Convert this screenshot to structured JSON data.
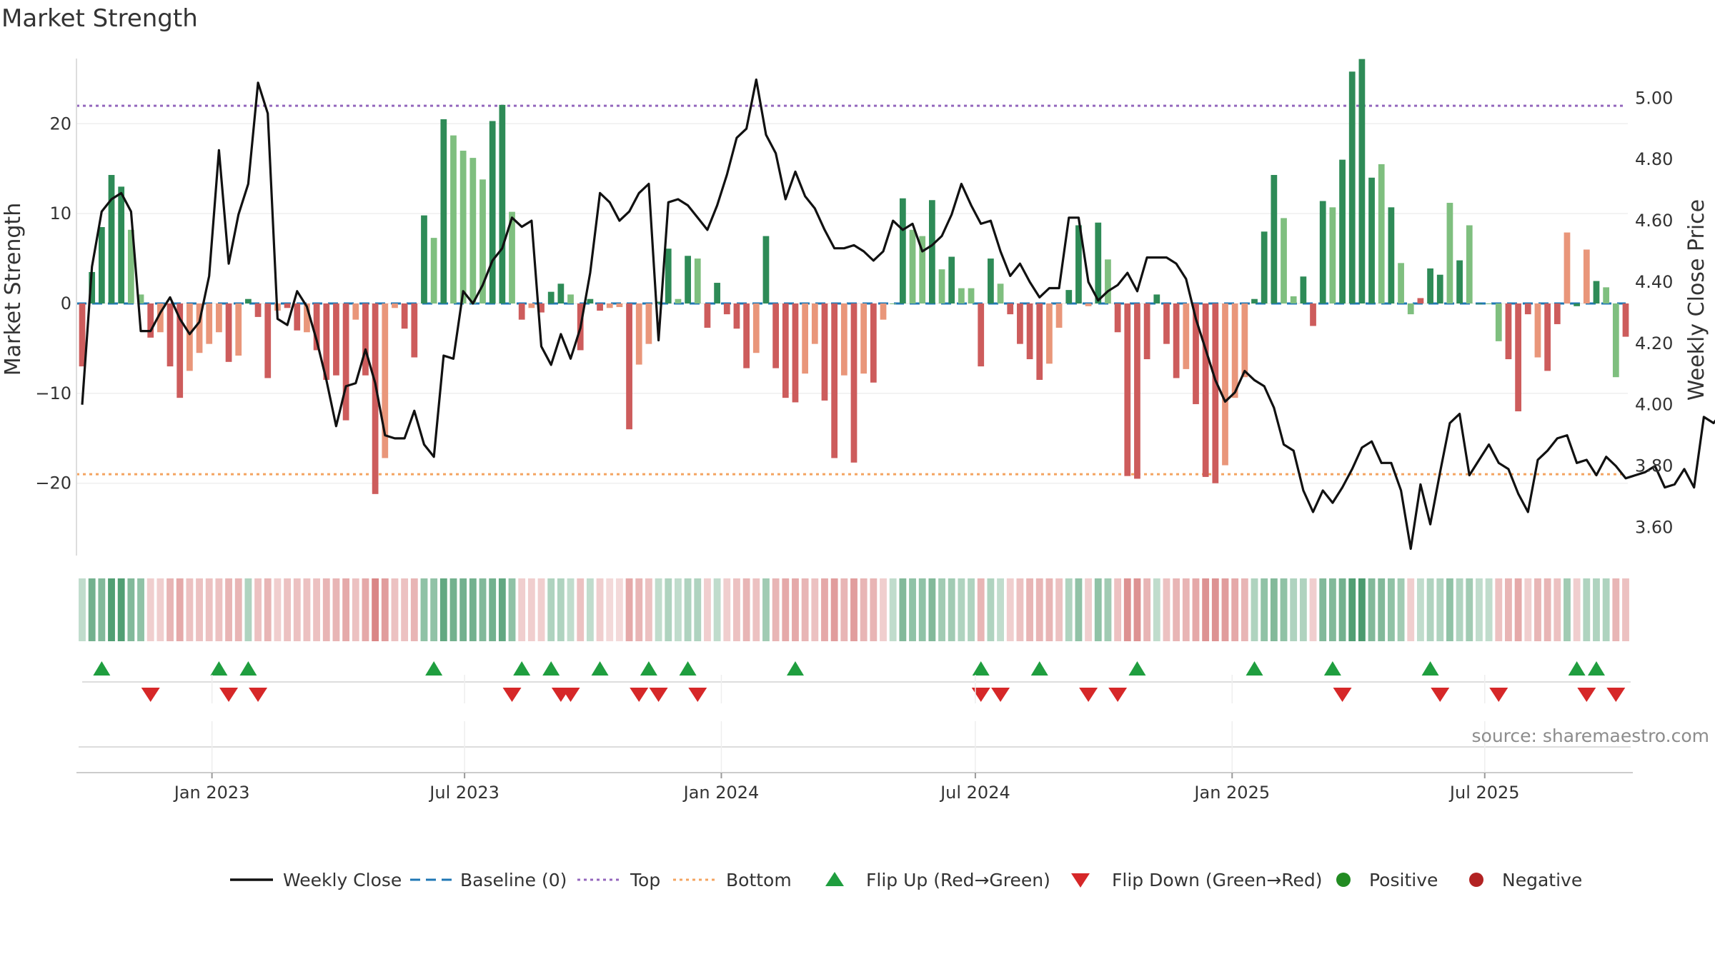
{
  "title": "Market Strength",
  "source": "source: sharemaestro.com",
  "colors": {
    "price_line": "#111111",
    "baseline": "#1f77b4",
    "top": "#9467bd",
    "bottom": "#f4a460",
    "strong_positive": "#2e8b57",
    "weak_positive": "#7fbf7f",
    "strong_negative": "#cd5c5c",
    "weak_negative": "#e9967a",
    "flip_up": "#1f9e3f",
    "flip_down": "#d62728",
    "positive_dot": "#228b22",
    "negative_dot": "#b22222"
  },
  "chart_data": {
    "type": "bar",
    "x_start": "2022-09-30",
    "x_step_days": 7,
    "left_axis": {
      "label": "Market Strength",
      "ticks": [
        20,
        10,
        0,
        -10,
        -20
      ],
      "ylim": [
        -29,
        29
      ]
    },
    "right_axis": {
      "label": "Weekly Close Price",
      "ticks": [
        "5.00",
        "4.80",
        "4.60",
        "4.40",
        "4.20",
        "4.00",
        "3.80",
        "3.60"
      ],
      "ylim": [
        3.48,
        5.18
      ]
    },
    "x_ticks": [
      {
        "date": "2023-01-01",
        "label": "Jan 2023"
      },
      {
        "date": "2023-07-01",
        "label": "Jul 2023"
      },
      {
        "date": "2024-01-01",
        "label": "Jan 2024"
      },
      {
        "date": "2024-07-01",
        "label": "Jul 2024"
      },
      {
        "date": "2025-01-01",
        "label": "Jan 2025"
      },
      {
        "date": "2025-07-01",
        "label": "Jul 2025"
      }
    ],
    "top_level": 22,
    "bottom_level": -19,
    "baseline": 0,
    "strength": [
      -7,
      3.5,
      8.5,
      14.3,
      13,
      8.2,
      1,
      -3.8,
      -3.2,
      -7,
      -10.5,
      -7.5,
      -5.5,
      -4.5,
      -3.2,
      -6.5,
      -5.8,
      0.5,
      -1.5,
      -8.3,
      -0.8,
      -0.5,
      -3,
      -3.2,
      -5.2,
      -8.5,
      -8,
      -13,
      -1.8,
      -8,
      -21.2,
      -17.2,
      -0.5,
      -2.8,
      -6,
      9.8,
      7.3,
      20.5,
      18.7,
      17,
      16.2,
      13.8,
      20.3,
      22.1,
      10.2,
      -1.8,
      -0.5,
      -1,
      1.3,
      2.2,
      1,
      -5.2,
      0.5,
      -0.8,
      -0.5,
      -0.4,
      -14,
      -6.8,
      -4.5,
      0.2,
      6.1,
      0.5,
      5.3,
      5,
      -2.7,
      2.3,
      -1.2,
      -2.8,
      -7.2,
      -5.5,
      7.5,
      -7.2,
      -10.5,
      -11,
      -7.8,
      -4.5,
      -10.8,
      -17.2,
      -8,
      -17.7,
      -7.8,
      -8.8,
      -1.8,
      0,
      11.7,
      8.2,
      7.5,
      11.5,
      3.8,
      5.2,
      1.7,
      1.7,
      -7,
      5,
      2.2,
      -1.2,
      -4.5,
      -6.2,
      -8.5,
      -6.7,
      -2.7,
      1.5,
      8.7,
      -0.3,
      9,
      4.9,
      -3.2,
      -19.2,
      -19.5,
      -6.2,
      1,
      -4.5,
      -8.3,
      -7.3,
      -11.2,
      -19.3,
      -20,
      -18,
      -10.5,
      -8.2,
      0.5,
      8,
      14.3,
      9.5,
      0.8,
      3,
      -2.5,
      11.4,
      10.7,
      16,
      25.8,
      27.2,
      14,
      15.5,
      10.7,
      4.5,
      -1.2,
      0.6,
      3.9,
      3.2,
      11.2,
      4.8,
      8.7,
      0,
      0,
      -4.2,
      -6.2,
      -12,
      -1.2,
      -6,
      -7.5,
      -2.3,
      7.9,
      -0.3,
      6,
      2.5,
      1.8,
      -8.2,
      -3.7
    ],
    "strength_style": [
      "sn",
      "sp",
      "sp",
      "sp",
      "sp",
      "wp",
      "wp",
      "sn",
      "wn",
      "sn",
      "sn",
      "wn",
      "wn",
      "wn",
      "wn",
      "sn",
      "wn",
      "sp",
      "sn",
      "sn",
      "wn",
      "sn",
      "sn",
      "wn",
      "sn",
      "sn",
      "sn",
      "sn",
      "wn",
      "sn",
      "sn",
      "wn",
      "wn",
      "sn",
      "sn",
      "sp",
      "wp",
      "sp",
      "wp",
      "wp",
      "wp",
      "wp",
      "sp",
      "sp",
      "wp",
      "sn",
      "wn",
      "sn",
      "sp",
      "sp",
      "wp",
      "sn",
      "sp",
      "sn",
      "wn",
      "wn",
      "sn",
      "wn",
      "wn",
      "sp",
      "sp",
      "wp",
      "sp",
      "wp",
      "sn",
      "sp",
      "sn",
      "sn",
      "sn",
      "wn",
      "sp",
      "sn",
      "sn",
      "sn",
      "wn",
      "wn",
      "sn",
      "sn",
      "wn",
      "sn",
      "wn",
      "sn",
      "wn",
      "wp",
      "sp",
      "wp",
      "wp",
      "sp",
      "wp",
      "sp",
      "wp",
      "wp",
      "sn",
      "sp",
      "wp",
      "sn",
      "sn",
      "sn",
      "sn",
      "wn",
      "wn",
      "sp",
      "sp",
      "wn",
      "sp",
      "wp",
      "sn",
      "sn",
      "sn",
      "sn",
      "sp",
      "sn",
      "sn",
      "wn",
      "sn",
      "sn",
      "sn",
      "wn",
      "wn",
      "wn",
      "sp",
      "sp",
      "sp",
      "wp",
      "wp",
      "sp",
      "sn",
      "sp",
      "wp",
      "sp",
      "sp",
      "sp",
      "sp",
      "wp",
      "sp",
      "wp",
      "wp",
      "sn",
      "sp",
      "sp",
      "wp",
      "sp",
      "wp",
      "sp",
      "wp",
      "wp",
      "sn",
      "sn",
      "sn",
      "wn",
      "sn",
      "sn",
      "wn",
      "sp",
      "wn",
      "sp",
      "wp",
      "wp",
      "sn",
      "wn"
    ],
    "close": [
      4.0,
      4.45,
      4.63,
      4.67,
      4.69,
      4.63,
      4.24,
      4.24,
      4.3,
      4.35,
      4.28,
      4.23,
      4.27,
      4.42,
      4.83,
      4.46,
      4.62,
      4.72,
      5.05,
      4.95,
      4.28,
      4.26,
      4.37,
      4.32,
      4.21,
      4.08,
      3.93,
      4.06,
      4.07,
      4.18,
      4.07,
      3.9,
      3.89,
      3.89,
      3.98,
      3.87,
      3.83,
      4.16,
      4.15,
      4.37,
      4.33,
      4.39,
      4.47,
      4.51,
      4.61,
      4.58,
      4.6,
      4.19,
      4.13,
      4.23,
      4.15,
      4.25,
      4.43,
      4.69,
      4.66,
      4.6,
      4.63,
      4.69,
      4.72,
      4.21,
      4.66,
      4.67,
      4.65,
      4.61,
      4.57,
      4.65,
      4.75,
      4.87,
      4.9,
      5.06,
      4.88,
      4.82,
      4.67,
      4.76,
      4.68,
      4.64,
      4.57,
      4.51,
      4.51,
      4.52,
      4.5,
      4.47,
      4.5,
      4.6,
      4.57,
      4.59,
      4.5,
      4.52,
      4.55,
      4.62,
      4.72,
      4.65,
      4.59,
      4.6,
      4.5,
      4.42,
      4.46,
      4.4,
      4.35,
      4.38,
      4.38,
      4.61,
      4.61,
      4.4,
      4.34,
      4.37,
      4.39,
      4.43,
      4.37,
      4.48,
      4.48,
      4.48,
      4.46,
      4.41,
      4.28,
      4.18,
      4.08,
      4.01,
      4.04,
      4.11,
      4.08,
      4.06,
      3.99,
      3.87,
      3.85,
      3.72,
      3.65,
      3.72,
      3.68,
      3.73,
      3.79,
      3.86,
      3.88,
      3.81,
      3.81,
      3.72,
      3.53,
      3.74,
      3.61,
      3.78,
      3.94,
      3.97,
      3.77,
      3.82,
      3.87,
      3.81,
      3.79,
      3.71,
      3.65,
      3.82,
      3.85,
      3.89,
      3.9,
      3.81,
      3.82,
      3.77,
      3.83,
      3.8,
      3.76,
      3.77,
      3.78,
      3.8,
      3.73,
      3.74,
      3.79,
      3.73,
      3.96,
      3.94,
      3.98,
      3.78,
      3.87
    ],
    "ribbon": [
      0.2,
      0.7,
      0.6,
      0.9,
      0.9,
      0.6,
      0.5,
      -0.2,
      -0.2,
      -0.4,
      -0.5,
      -0.3,
      -0.3,
      -0.3,
      -0.3,
      -0.4,
      -0.4,
      0.3,
      -0.3,
      -0.4,
      -0.2,
      -0.3,
      -0.3,
      -0.3,
      -0.3,
      -0.4,
      -0.4,
      -0.5,
      -0.3,
      -0.5,
      -0.8,
      -0.6,
      -0.3,
      -0.3,
      -0.4,
      0.5,
      0.5,
      0.8,
      0.7,
      0.7,
      0.7,
      0.6,
      0.7,
      0.8,
      0.5,
      -0.2,
      -0.2,
      -0.2,
      0.3,
      0.3,
      0.2,
      -0.3,
      0.2,
      -0.2,
      -0.1,
      -0.1,
      -0.5,
      -0.4,
      -0.3,
      0.2,
      0.3,
      0.2,
      0.3,
      0.3,
      -0.2,
      0.2,
      -0.2,
      -0.3,
      -0.4,
      -0.3,
      0.4,
      -0.4,
      -0.5,
      -0.5,
      -0.4,
      -0.3,
      -0.5,
      -0.6,
      -0.4,
      -0.6,
      -0.4,
      -0.4,
      -0.2,
      0.2,
      0.6,
      0.5,
      0.5,
      0.6,
      0.4,
      0.4,
      0.3,
      0.3,
      -0.4,
      0.3,
      0.2,
      -0.2,
      -0.3,
      -0.4,
      -0.4,
      -0.4,
      -0.3,
      0.3,
      0.5,
      -0.2,
      0.5,
      0.4,
      -0.3,
      -0.7,
      -0.7,
      -0.4,
      0.2,
      -0.3,
      -0.4,
      -0.4,
      -0.5,
      -0.7,
      -0.7,
      -0.6,
      -0.5,
      -0.4,
      0.3,
      0.5,
      0.6,
      0.5,
      0.3,
      0.3,
      -0.2,
      0.6,
      0.6,
      0.7,
      0.9,
      0.95,
      0.6,
      0.6,
      0.5,
      0.4,
      -0.2,
      0.2,
      0.3,
      0.3,
      0.5,
      0.3,
      0.4,
      0.2,
      0.2,
      -0.3,
      -0.4,
      -0.5,
      -0.2,
      -0.4,
      -0.4,
      -0.3,
      0.4,
      -0.2,
      0.3,
      0.3,
      0.3,
      -0.4,
      -0.3
    ],
    "flip_up": [
      "2022-10-14",
      "2023-01-06",
      "2023-01-27",
      "2023-06-09",
      "2023-08-11",
      "2023-09-01",
      "2023-10-06",
      "2023-11-10",
      "2023-12-08",
      "2024-02-23",
      "2024-07-05",
      "2024-08-16",
      "2024-10-25",
      "2025-01-17",
      "2025-03-14",
      "2025-05-23",
      "2025-09-05",
      "2025-09-19"
    ],
    "flip_down": [
      "2022-11-18",
      "2023-01-13",
      "2023-02-03",
      "2023-08-04",
      "2023-09-08",
      "2023-09-15",
      "2023-11-03",
      "2023-11-17",
      "2023-12-15",
      "2024-07-05",
      "2024-07-19",
      "2024-09-20",
      "2024-10-11",
      "2025-03-21",
      "2025-05-30",
      "2025-07-11",
      "2025-09-12",
      "2025-10-03"
    ]
  },
  "legend": [
    {
      "label": "Weekly Close",
      "kind": "line",
      "color": "#111111"
    },
    {
      "label": "Baseline (0)",
      "kind": "dash",
      "color": "#1f77b4"
    },
    {
      "label": "Top",
      "kind": "dot",
      "color": "#9467bd"
    },
    {
      "label": "Bottom",
      "kind": "dot",
      "color": "#f4a460"
    },
    {
      "label": "Flip Up (Red→Green)",
      "kind": "tri-up",
      "color": "#1f9e3f"
    },
    {
      "label": "Flip Down (Green→Red)",
      "kind": "tri-down",
      "color": "#d62728"
    },
    {
      "label": "Positive",
      "kind": "circle",
      "color": "#228b22"
    },
    {
      "label": "Negative",
      "kind": "circle",
      "color": "#b22222"
    }
  ]
}
